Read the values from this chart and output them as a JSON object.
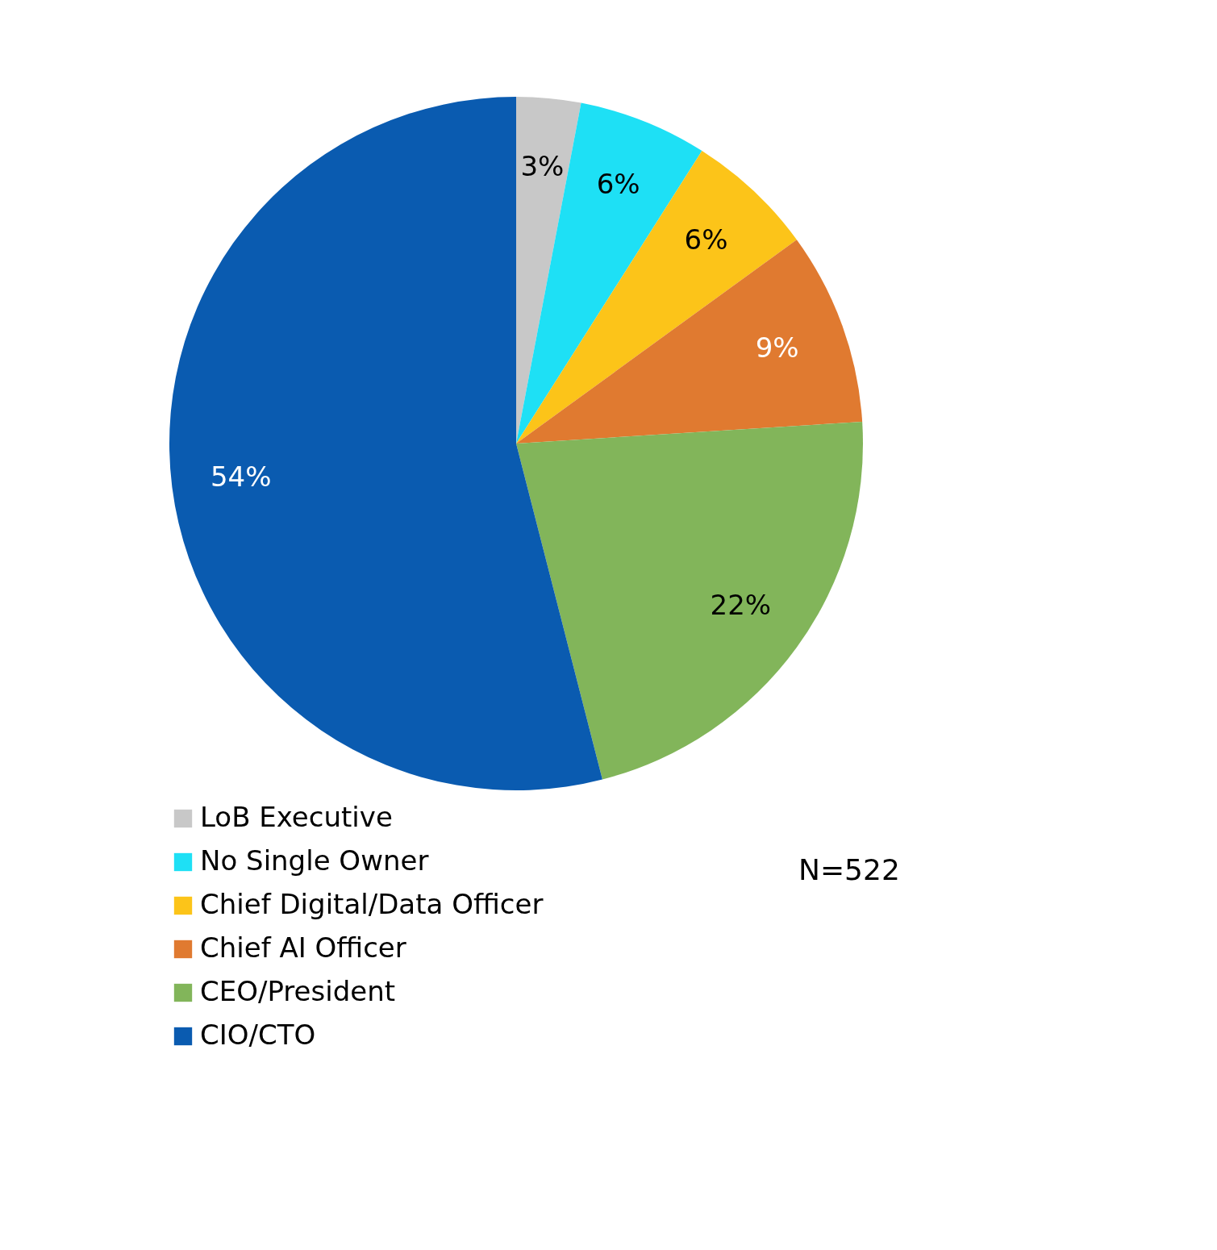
{
  "chart_data": {
    "type": "pie",
    "categories": [
      "LoB Executive",
      "No Single Owner",
      "Chief Digital/Data Officer",
      "Chief AI Officer",
      "CEO/President",
      "CIO/CTO"
    ],
    "values": [
      3,
      6,
      6,
      9,
      22,
      54
    ],
    "colors": [
      "#c8c8c8",
      "#1ee0f5",
      "#fcc419",
      "#e07a30",
      "#82b55a",
      "#0a5bb0"
    ],
    "value_labels": [
      "3%",
      "6%",
      "6%",
      "9%",
      "22%",
      "54%"
    ],
    "annotations": [
      "N=522"
    ],
    "legend": "bottom"
  }
}
